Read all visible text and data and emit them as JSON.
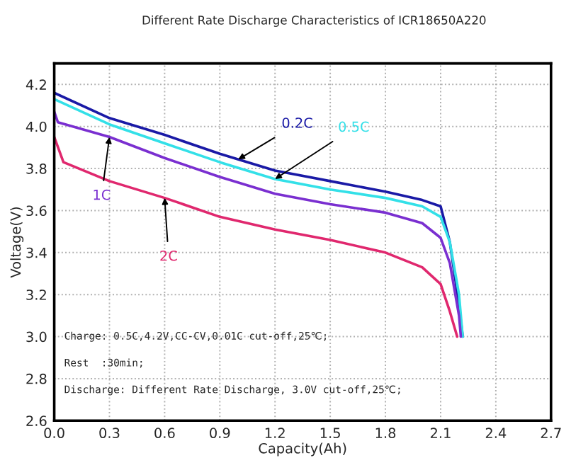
{
  "chart_data": {
    "type": "line",
    "title": "Different Rate Discharge Characteristics of ICR18650A220",
    "xlabel": "Capacity(Ah)",
    "ylabel": "Voltage(V)",
    "xlim": [
      0,
      2.7
    ],
    "xticks": [
      {
        "value": 0,
        "label": "0.0"
      },
      0.3,
      0.6,
      0.9,
      1.2,
      1.5,
      1.8,
      2.1,
      2.4,
      2.7
    ],
    "ylim": [
      2.6,
      4.3
    ],
    "yticks": [
      2.6,
      2.8,
      {
        "value": 3.0,
        "label": "3.0"
      },
      3.2,
      3.4,
      3.6,
      3.8,
      {
        "value": 4.0,
        "label": "4.0"
      },
      4.2
    ],
    "grid": true,
    "legend": false,
    "marker": "none",
    "line_style": "solid",
    "series": [
      {
        "name": "0.2C",
        "color": "#1a1aa6",
        "x": [
          0,
          0.3,
          0.6,
          0.9,
          1.2,
          1.5,
          1.8,
          2.0,
          2.1,
          2.15,
          2.2,
          2.22
        ],
        "values": [
          4.16,
          4.04,
          3.96,
          3.87,
          3.79,
          3.74,
          3.69,
          3.65,
          3.62,
          3.45,
          3.15,
          3.0
        ]
      },
      {
        "name": "0.5C",
        "color": "#33e0e8",
        "x": [
          0,
          0.3,
          0.6,
          0.9,
          1.2,
          1.5,
          1.8,
          2.0,
          2.1,
          2.15,
          2.2,
          2.22
        ],
        "values": [
          4.13,
          4.01,
          3.92,
          3.83,
          3.75,
          3.7,
          3.66,
          3.62,
          3.57,
          3.45,
          3.2,
          3.0
        ]
      },
      {
        "name": "1C",
        "color": "#7a2fd0",
        "x": [
          0,
          0.02,
          0.3,
          0.6,
          0.9,
          1.2,
          1.5,
          1.8,
          2.0,
          2.1,
          2.15,
          2.2,
          2.21
        ],
        "values": [
          4.07,
          4.02,
          3.95,
          3.85,
          3.76,
          3.68,
          3.63,
          3.59,
          3.54,
          3.47,
          3.35,
          3.1,
          3.0
        ]
      },
      {
        "name": "2C",
        "color": "#e0286e",
        "x": [
          0,
          0.05,
          0.3,
          0.6,
          0.9,
          1.2,
          1.5,
          1.8,
          2.0,
          2.1,
          2.15,
          2.19
        ],
        "values": [
          3.95,
          3.83,
          3.74,
          3.66,
          3.57,
          3.51,
          3.46,
          3.4,
          3.33,
          3.25,
          3.12,
          3.0
        ]
      }
    ],
    "annotations": [
      "Charge: 0.5C,4.2V,CC-CV,0.01C cut-off,25℃;",
      "Rest  :30min;",
      "Discharge: Different Rate Discharge, 3.0V cut-off,25℃;"
    ]
  }
}
